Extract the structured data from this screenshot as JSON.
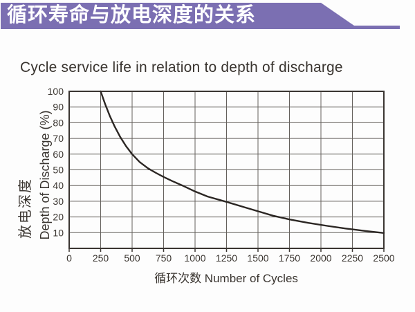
{
  "banner": {
    "title": "循环寿命与放电深度的关系",
    "bg_color": "#7b6fb2",
    "text_color": "#ffffff"
  },
  "chart_data": {
    "type": "line",
    "title": "Cycle service life in relation to depth of discharge",
    "xlabel": "循环次数 Number of Cycles",
    "ylabel_zh": "放电深度",
    "ylabel_en": "Depth of Discharge (%)",
    "xlim": [
      0,
      2500
    ],
    "ylim": [
      0,
      100
    ],
    "x_ticks": [
      0,
      250,
      500,
      750,
      1000,
      1250,
      1500,
      1750,
      2000,
      2250,
      2500
    ],
    "y_ticks": [
      10,
      20,
      30,
      40,
      50,
      60,
      70,
      80,
      90,
      100
    ],
    "grid": true,
    "legend": "none",
    "series": [
      {
        "name": "depth-of-discharge-vs-cycles",
        "points": [
          [
            250,
            100
          ],
          [
            285,
            92
          ],
          [
            322,
            84.5
          ],
          [
            362,
            77.5
          ],
          [
            405,
            71
          ],
          [
            452,
            65
          ],
          [
            500,
            60
          ],
          [
            560,
            55
          ],
          [
            625,
            51
          ],
          [
            690,
            48
          ],
          [
            755,
            45.3
          ],
          [
            820,
            42.8
          ],
          [
            900,
            40
          ],
          [
            1000,
            36.2
          ],
          [
            1100,
            33
          ],
          [
            1250,
            29.6
          ],
          [
            1400,
            26
          ],
          [
            1500,
            23.6
          ],
          [
            1620,
            20.8
          ],
          [
            1750,
            18.4
          ],
          [
            1900,
            16.2
          ],
          [
            2050,
            14.3
          ],
          [
            2200,
            12.6
          ],
          [
            2350,
            11.1
          ],
          [
            2500,
            9.8
          ]
        ]
      }
    ],
    "line_color": "#2b2623",
    "grid_color": "#64605c",
    "axis_color": "#3a3531",
    "label_color": "#39342f"
  }
}
